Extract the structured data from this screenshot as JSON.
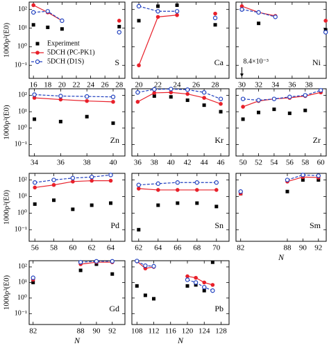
{
  "chart_data": [
    {
      "type": "line",
      "title": "S",
      "x": [
        16,
        18,
        20,
        28
      ],
      "xlim": [
        15.4,
        28.8
      ],
      "xticks": [
        16,
        18,
        20,
        22,
        24,
        26,
        28
      ],
      "ylim": [
        0.02,
        250
      ],
      "yticks": [
        {
          "value": 0.1,
          "label": "10⁻¹"
        },
        {
          "value": 1,
          "label": "10⁰"
        },
        {
          "value": 10,
          "label": "10¹"
        },
        {
          "value": 100,
          "label": "10²"
        }
      ],
      "ylabel": "1000ρ²(E0)",
      "log_y": true,
      "legend": "lower-left",
      "series": [
        {
          "name": "Experiment",
          "color": "#000000",
          "marker": "square",
          "line": "none",
          "values": [
            15,
            11,
            9,
            12
          ]
        },
        {
          "name": "5DCH (PC-PK1)",
          "color": "#e8202a",
          "marker": "circle",
          "line": "solid",
          "values": [
            170,
            70,
            25,
            25
          ]
        },
        {
          "name": "5DCH (D1S)",
          "color": "#1f3fbf",
          "marker": "open-circle",
          "line": "dashed",
          "values": [
            70,
            80,
            25,
            6
          ]
        }
      ]
    },
    {
      "type": "line",
      "title": "Ca",
      "x": [
        20,
        22,
        24,
        28
      ],
      "xlim": [
        19.27,
        29.45
      ],
      "xticks": [
        20,
        22,
        24,
        26,
        28
      ],
      "ylim": [
        0.02,
        250
      ],
      "yticks": [
        0.1,
        1,
        10,
        100
      ],
      "log_y": true,
      "series": [
        {
          "color": "#000000",
          "marker": "square",
          "line": "none",
          "values": [
            25,
            150,
            170,
            15
          ]
        },
        {
          "color": "#e8202a",
          "marker": "circle",
          "line": "solid",
          "values": [
            0.1,
            40,
            50,
            60
          ]
        },
        {
          "color": "#1f3fbf",
          "marker": "open-circle",
          "line": "dashed",
          "values": [
            150,
            80,
            80,
            35
          ]
        }
      ]
    },
    {
      "type": "line",
      "title": "Ni",
      "x": [
        30,
        32,
        34,
        40
      ],
      "xlim": [
        29.3,
        40.07
      ],
      "xticks": [
        30,
        32,
        34,
        36,
        38
      ],
      "ylim": [
        0.02,
        250
      ],
      "yticks": [
        0.1,
        1,
        10,
        100
      ],
      "log_y": true,
      "annotation": {
        "text": "8.4×10⁻³",
        "x": 30,
        "value": 0.0084
      },
      "series": [
        {
          "color": "#000000",
          "marker": "square",
          "line": "none",
          "values": [
            0.0084,
            18,
            null,
            8
          ]
        },
        {
          "color": "#e8202a",
          "marker": "circle",
          "line": "solid",
          "values": [
            150,
            70,
            45,
            25
          ]
        },
        {
          "color": "#1f3fbf",
          "marker": "open-circle",
          "line": "dashed",
          "values": [
            100,
            70,
            40,
            6
          ]
        }
      ]
    },
    {
      "type": "line",
      "title": "Zn",
      "x": [
        34,
        36,
        38,
        40
      ],
      "xlim": [
        33.6,
        40.9
      ],
      "xticks": [
        34,
        36,
        38,
        40
      ],
      "ylim": [
        0.02,
        250
      ],
      "yticks": [
        {
          "value": 0.1,
          "label": "10⁻¹"
        },
        {
          "value": 1,
          "label": "10⁰"
        },
        {
          "value": 10,
          "label": "10¹"
        },
        {
          "value": 100,
          "label": "10²"
        }
      ],
      "ylabel": "1000ρ²(E0)",
      "log_y": true,
      "series": [
        {
          "color": "#000000",
          "marker": "square",
          "line": "none",
          "values": [
            3.5,
            2.5,
            5,
            2
          ]
        },
        {
          "color": "#e8202a",
          "marker": "circle",
          "line": "solid",
          "values": [
            70,
            55,
            45,
            40
          ]
        },
        {
          "color": "#1f3fbf",
          "marker": "open-circle",
          "line": "dashed",
          "values": [
            110,
            90,
            85,
            80
          ]
        }
      ]
    },
    {
      "type": "line",
      "title": "Kr",
      "x": [
        36,
        38,
        40,
        42,
        44,
        46
      ],
      "xlim": [
        35.3,
        47
      ],
      "xticks": [
        36,
        38,
        40,
        42,
        44,
        46
      ],
      "ylim": [
        0.02,
        250
      ],
      "yticks": [
        0.1,
        1,
        10,
        100
      ],
      "log_y": true,
      "series": [
        {
          "color": "#000000",
          "marker": "square",
          "line": "none",
          "values": [
            null,
            90,
            80,
            50,
            25,
            10
          ]
        },
        {
          "color": "#e8202a",
          "marker": "circle",
          "line": "solid",
          "values": [
            40,
            140,
            150,
            120,
            70,
            30
          ]
        },
        {
          "color": "#1f3fbf",
          "marker": "open-circle",
          "line": "dashed",
          "values": [
            150,
            230,
            240,
            220,
            150,
            60
          ]
        }
      ]
    },
    {
      "type": "line",
      "title": "Zr",
      "x": [
        50,
        52,
        54,
        56,
        58,
        60
      ],
      "xlim": [
        49.1,
        60.7
      ],
      "xticks": [
        50,
        52,
        54,
        56,
        58,
        60
      ],
      "ylim": [
        0.02,
        250
      ],
      "yticks": [
        0.1,
        1,
        10,
        100
      ],
      "log_y": true,
      "series": [
        {
          "color": "#000000",
          "marker": "square",
          "line": "none",
          "values": [
            3.5,
            9,
            14,
            8,
            12,
            null
          ]
        },
        {
          "color": "#e8202a",
          "marker": "circle",
          "line": "solid",
          "values": [
            20,
            45,
            60,
            70,
            90,
            150
          ]
        },
        {
          "color": "#1f3fbf",
          "marker": "open-circle",
          "line": "dashed",
          "values": [
            60,
            50,
            60,
            80,
            100,
            200
          ]
        }
      ]
    },
    {
      "type": "line",
      "title": "Pd",
      "x": [
        56,
        58,
        60,
        62,
        64
      ],
      "xlim": [
        55.4,
        65.5
      ],
      "xticks": [
        56,
        58,
        60,
        62,
        64
      ],
      "ylim": [
        0.02,
        250
      ],
      "yticks": [
        {
          "value": 0.1,
          "label": "10⁻¹"
        },
        {
          "value": 1,
          "label": "10⁰"
        },
        {
          "value": 10,
          "label": "10¹"
        },
        {
          "value": 100,
          "label": "10²"
        }
      ],
      "ylabel": "1000ρ²(E0)",
      "log_y": true,
      "series": [
        {
          "color": "#000000",
          "marker": "square",
          "line": "none",
          "values": [
            3.5,
            6,
            1.7,
            3,
            4
          ]
        },
        {
          "color": "#e8202a",
          "marker": "circle",
          "line": "solid",
          "values": [
            35,
            50,
            80,
            90,
            90
          ]
        },
        {
          "color": "#1f3fbf",
          "marker": "open-circle",
          "line": "dashed",
          "values": [
            70,
            100,
            130,
            150,
            200
          ]
        }
      ]
    },
    {
      "type": "line",
      "title": "Sn",
      "x": [
        62,
        64,
        66,
        68,
        70
      ],
      "xlim": [
        61.3,
        71.3
      ],
      "xticks": [
        62,
        64,
        66,
        68,
        70
      ],
      "ylim": [
        0.02,
        250
      ],
      "yticks": [
        0.1,
        1,
        10,
        100
      ],
      "log_y": true,
      "series": [
        {
          "color": "#000000",
          "marker": "square",
          "line": "none",
          "values": [
            0.1,
            3,
            4,
            4,
            2.5
          ]
        },
        {
          "color": "#e8202a",
          "marker": "circle",
          "line": "solid",
          "values": [
            30,
            25,
            25,
            25,
            25
          ]
        },
        {
          "color": "#1f3fbf",
          "marker": "open-circle",
          "line": "dashed",
          "values": [
            50,
            60,
            70,
            70,
            70
          ]
        }
      ]
    },
    {
      "type": "line",
      "title": "Sm",
      "x": [
        82,
        88,
        90,
        92
      ],
      "xlim": [
        81.4,
        93
      ],
      "xticks": [
        82,
        88,
        90,
        92
      ],
      "ylim": [
        0.02,
        250
      ],
      "yticks": [
        0.1,
        1,
        10,
        100
      ],
      "log_y": true,
      "xlabel": "N",
      "series": [
        {
          "color": "#000000",
          "marker": "square",
          "line": "none",
          "values": [
            15,
            20,
            100,
            100
          ]
        },
        {
          "color": "#e8202a",
          "marker": "circle",
          "line": "solid",
          "values": [
            15,
            80,
            150,
            140
          ]
        },
        {
          "color": "#1f3fbf",
          "marker": "open-circle",
          "line": "dashed",
          "values": [
            20,
            100,
            200,
            180
          ]
        }
      ]
    },
    {
      "type": "line",
      "title": "Gd",
      "x": [
        82,
        88,
        90,
        92
      ],
      "xlim": [
        81.5,
        93.6
      ],
      "xticks": [
        82,
        88,
        90,
        92
      ],
      "ylim": [
        0.02,
        250
      ],
      "yticks": [
        {
          "value": 0.1,
          "label": "10⁻¹"
        },
        {
          "value": 1,
          "label": "10⁰"
        },
        {
          "value": 10,
          "label": "10¹"
        },
        {
          "value": 100,
          "label": "10²"
        }
      ],
      "ylabel": "1000ρ²(E0)",
      "log_y": true,
      "xlabel": "N",
      "series": [
        {
          "color": "#000000",
          "marker": "square",
          "line": "none",
          "values": [
            10,
            60,
            150,
            35
          ]
        },
        {
          "color": "#e8202a",
          "marker": "circle",
          "line": "solid",
          "values": [
            15,
            150,
            200,
            200
          ]
        },
        {
          "color": "#1f3fbf",
          "marker": "open-circle",
          "line": "dashed",
          "values": [
            20,
            200,
            230,
            230
          ]
        }
      ]
    },
    {
      "type": "line",
      "title": "Pb",
      "x": [
        108,
        110,
        112,
        120,
        122,
        124,
        126
      ],
      "xlim": [
        106.8,
        129.9
      ],
      "xticks": [
        108,
        112,
        116,
        120,
        124,
        128
      ],
      "ylim": [
        0.02,
        250
      ],
      "yticks": [
        0.1,
        1,
        10,
        100
      ],
      "log_y": true,
      "xlabel": "N",
      "series": [
        {
          "color": "#000000",
          "marker": "square",
          "line": "none",
          "values": [
            6,
            1.5,
            0.9,
            6,
            7,
            3,
            200
          ]
        },
        {
          "color": "#e8202a",
          "marker": "circle",
          "line": "solid",
          "values": [
            230,
            80,
            100,
            25,
            20,
            10,
            7
          ]
        },
        {
          "color": "#1f3fbf",
          "marker": "open-circle",
          "line": "dashed",
          "values": [
            240,
            120,
            110,
            15,
            10,
            5,
            3
          ]
        }
      ]
    }
  ]
}
